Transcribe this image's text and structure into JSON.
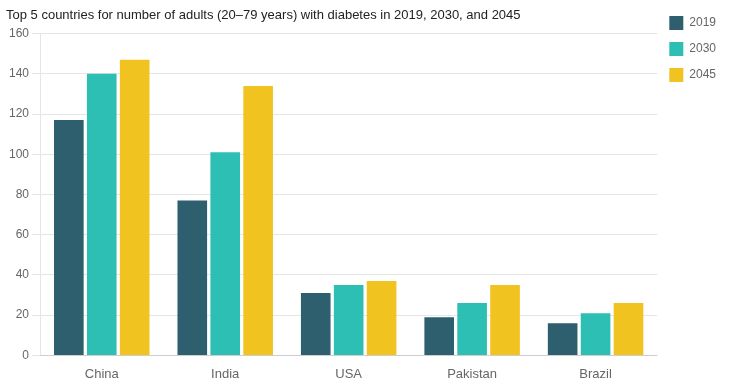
{
  "chart_data": {
    "type": "bar",
    "title": "Top 5 countries for number of adults (20–79 years) with diabetes in 2019, 2030, and 2045",
    "categories": [
      "China",
      "India",
      "USA",
      "Pakistan",
      "Brazil"
    ],
    "series": [
      {
        "name": "2019",
        "color": "#2d5f6e",
        "values": [
          117,
          77,
          31,
          19,
          16
        ]
      },
      {
        "name": "2030",
        "color": "#2dbfb3",
        "values": [
          140,
          101,
          35,
          26,
          21
        ]
      },
      {
        "name": "2045",
        "color": "#f0c320",
        "values": [
          147,
          134,
          37,
          35,
          26
        ]
      }
    ],
    "ylim": [
      0,
      160
    ],
    "yticks": [
      0,
      20,
      40,
      60,
      80,
      100,
      120,
      140,
      160
    ],
    "grid": true,
    "legend": "upper right"
  }
}
